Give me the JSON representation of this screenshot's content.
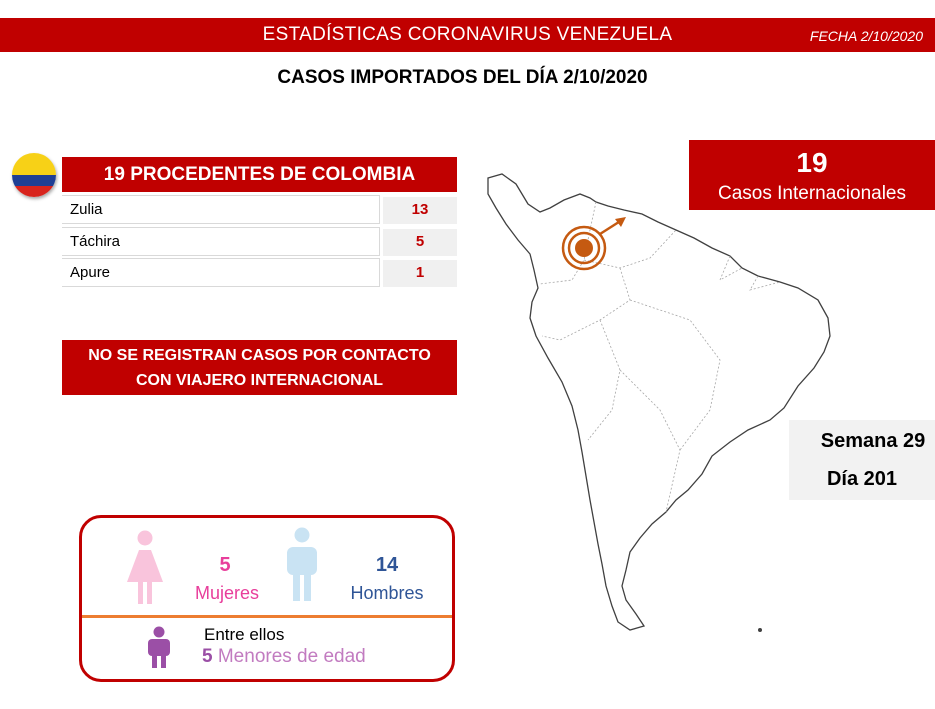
{
  "header": {
    "title": "ESTADÍSTICAS CORONAVIRUS VENEZUELA",
    "date": "FECHA 2/10/2020"
  },
  "subtitle": "CASOS IMPORTADOS DEL DÍA  2/10/2020",
  "colombia": {
    "flag_colors": [
      "#f7d117",
      "#1f3f94",
      "#d8241d"
    ],
    "table_title": "19 PROCEDENTES DE COLOMBIA",
    "rows": [
      {
        "state": "Zulia",
        "cases": "13"
      },
      {
        "state": "Táchira",
        "cases": "5"
      },
      {
        "state": "Apure",
        "cases": "1"
      }
    ]
  },
  "no_contact": {
    "line1": "NO SE REGISTRAN CASOS POR CONTACTO",
    "line2": "CON VIAJERO INTERNACIONAL"
  },
  "international": {
    "count": "19",
    "label": "Casos Internacionales"
  },
  "week": {
    "week_label": "Semana 29",
    "day_label": "Día 201"
  },
  "gender": {
    "women_count": "5",
    "women_label": "Mujeres",
    "men_count": "14",
    "men_label": "Hombres",
    "among_label": "Entre ellos",
    "minors_count": "5",
    "minors_label": "Menores de edad"
  },
  "colors": {
    "brand_red": "#c00000",
    "women_pink": "#e83e9b",
    "men_blue": "#2f5597",
    "minors_purple": "#9b4fa6",
    "divider_orange": "#ed7d31",
    "marker_orange": "#c55a11"
  },
  "icons": {
    "flag": "colombia-flag-icon",
    "map": "south-america-map",
    "marker": "target-marker-icon",
    "woman": "woman-icon",
    "man": "man-icon",
    "child": "child-icon"
  }
}
